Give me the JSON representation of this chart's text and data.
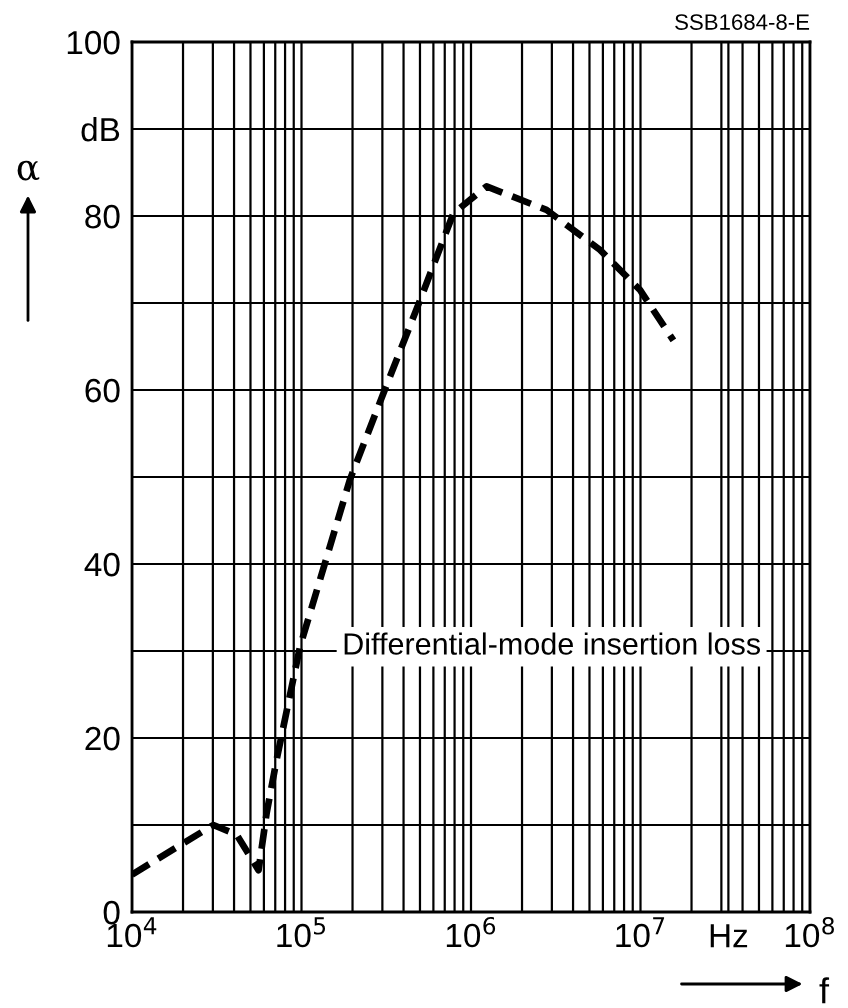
{
  "chart_data": {
    "type": "line",
    "xlabel": "f",
    "ylabel": "α",
    "log": "x",
    "grid": true,
    "line_style": "dashed",
    "marker": "none",
    "annotations": [
      "SSB1684-8-E"
    ],
    "xlim": [
      10000,
      100000000
    ],
    "xticks": [
      {
        "value": 10000,
        "label": "10$^{4}$"
      },
      {
        "value": 100000,
        "label": "10$^{5}$"
      },
      {
        "value": 1000000,
        "label": "10$^{6}$"
      },
      {
        "value": 10000000,
        "label": "10$^{7}$"
      },
      {
        "value": 33000000,
        "label": "Hz"
      },
      {
        "value": 100000000,
        "label": "10$^{8}$"
      }
    ],
    "ylim": [
      0,
      100
    ],
    "yticks": [
      0,
      {
        "value": 10,
        "label": null
      },
      20,
      {
        "value": 30,
        "label": null
      },
      40,
      {
        "value": 50,
        "label": null
      },
      60,
      {
        "value": 70,
        "label": null
      },
      80,
      {
        "value": 90,
        "label": "dB"
      },
      100
    ],
    "series": [
      {
        "name": "Differential-mode insertion loss",
        "color": "#000000",
        "x": [
          10000,
          30200,
          41400,
          55800,
          62200,
          71300,
          98000,
          193000,
          304000,
          500000,
          787000,
          1236000,
          2790000,
          5770000,
          9930000,
          15630000
        ],
        "values": [
          4.3,
          10.0,
          8.9,
          4.8,
          11.3,
          17.5,
          30.5,
          49.7,
          59.6,
          70.3,
          80.3,
          83.4,
          80.7,
          76.1,
          71.5,
          65.7
        ]
      }
    ]
  }
}
